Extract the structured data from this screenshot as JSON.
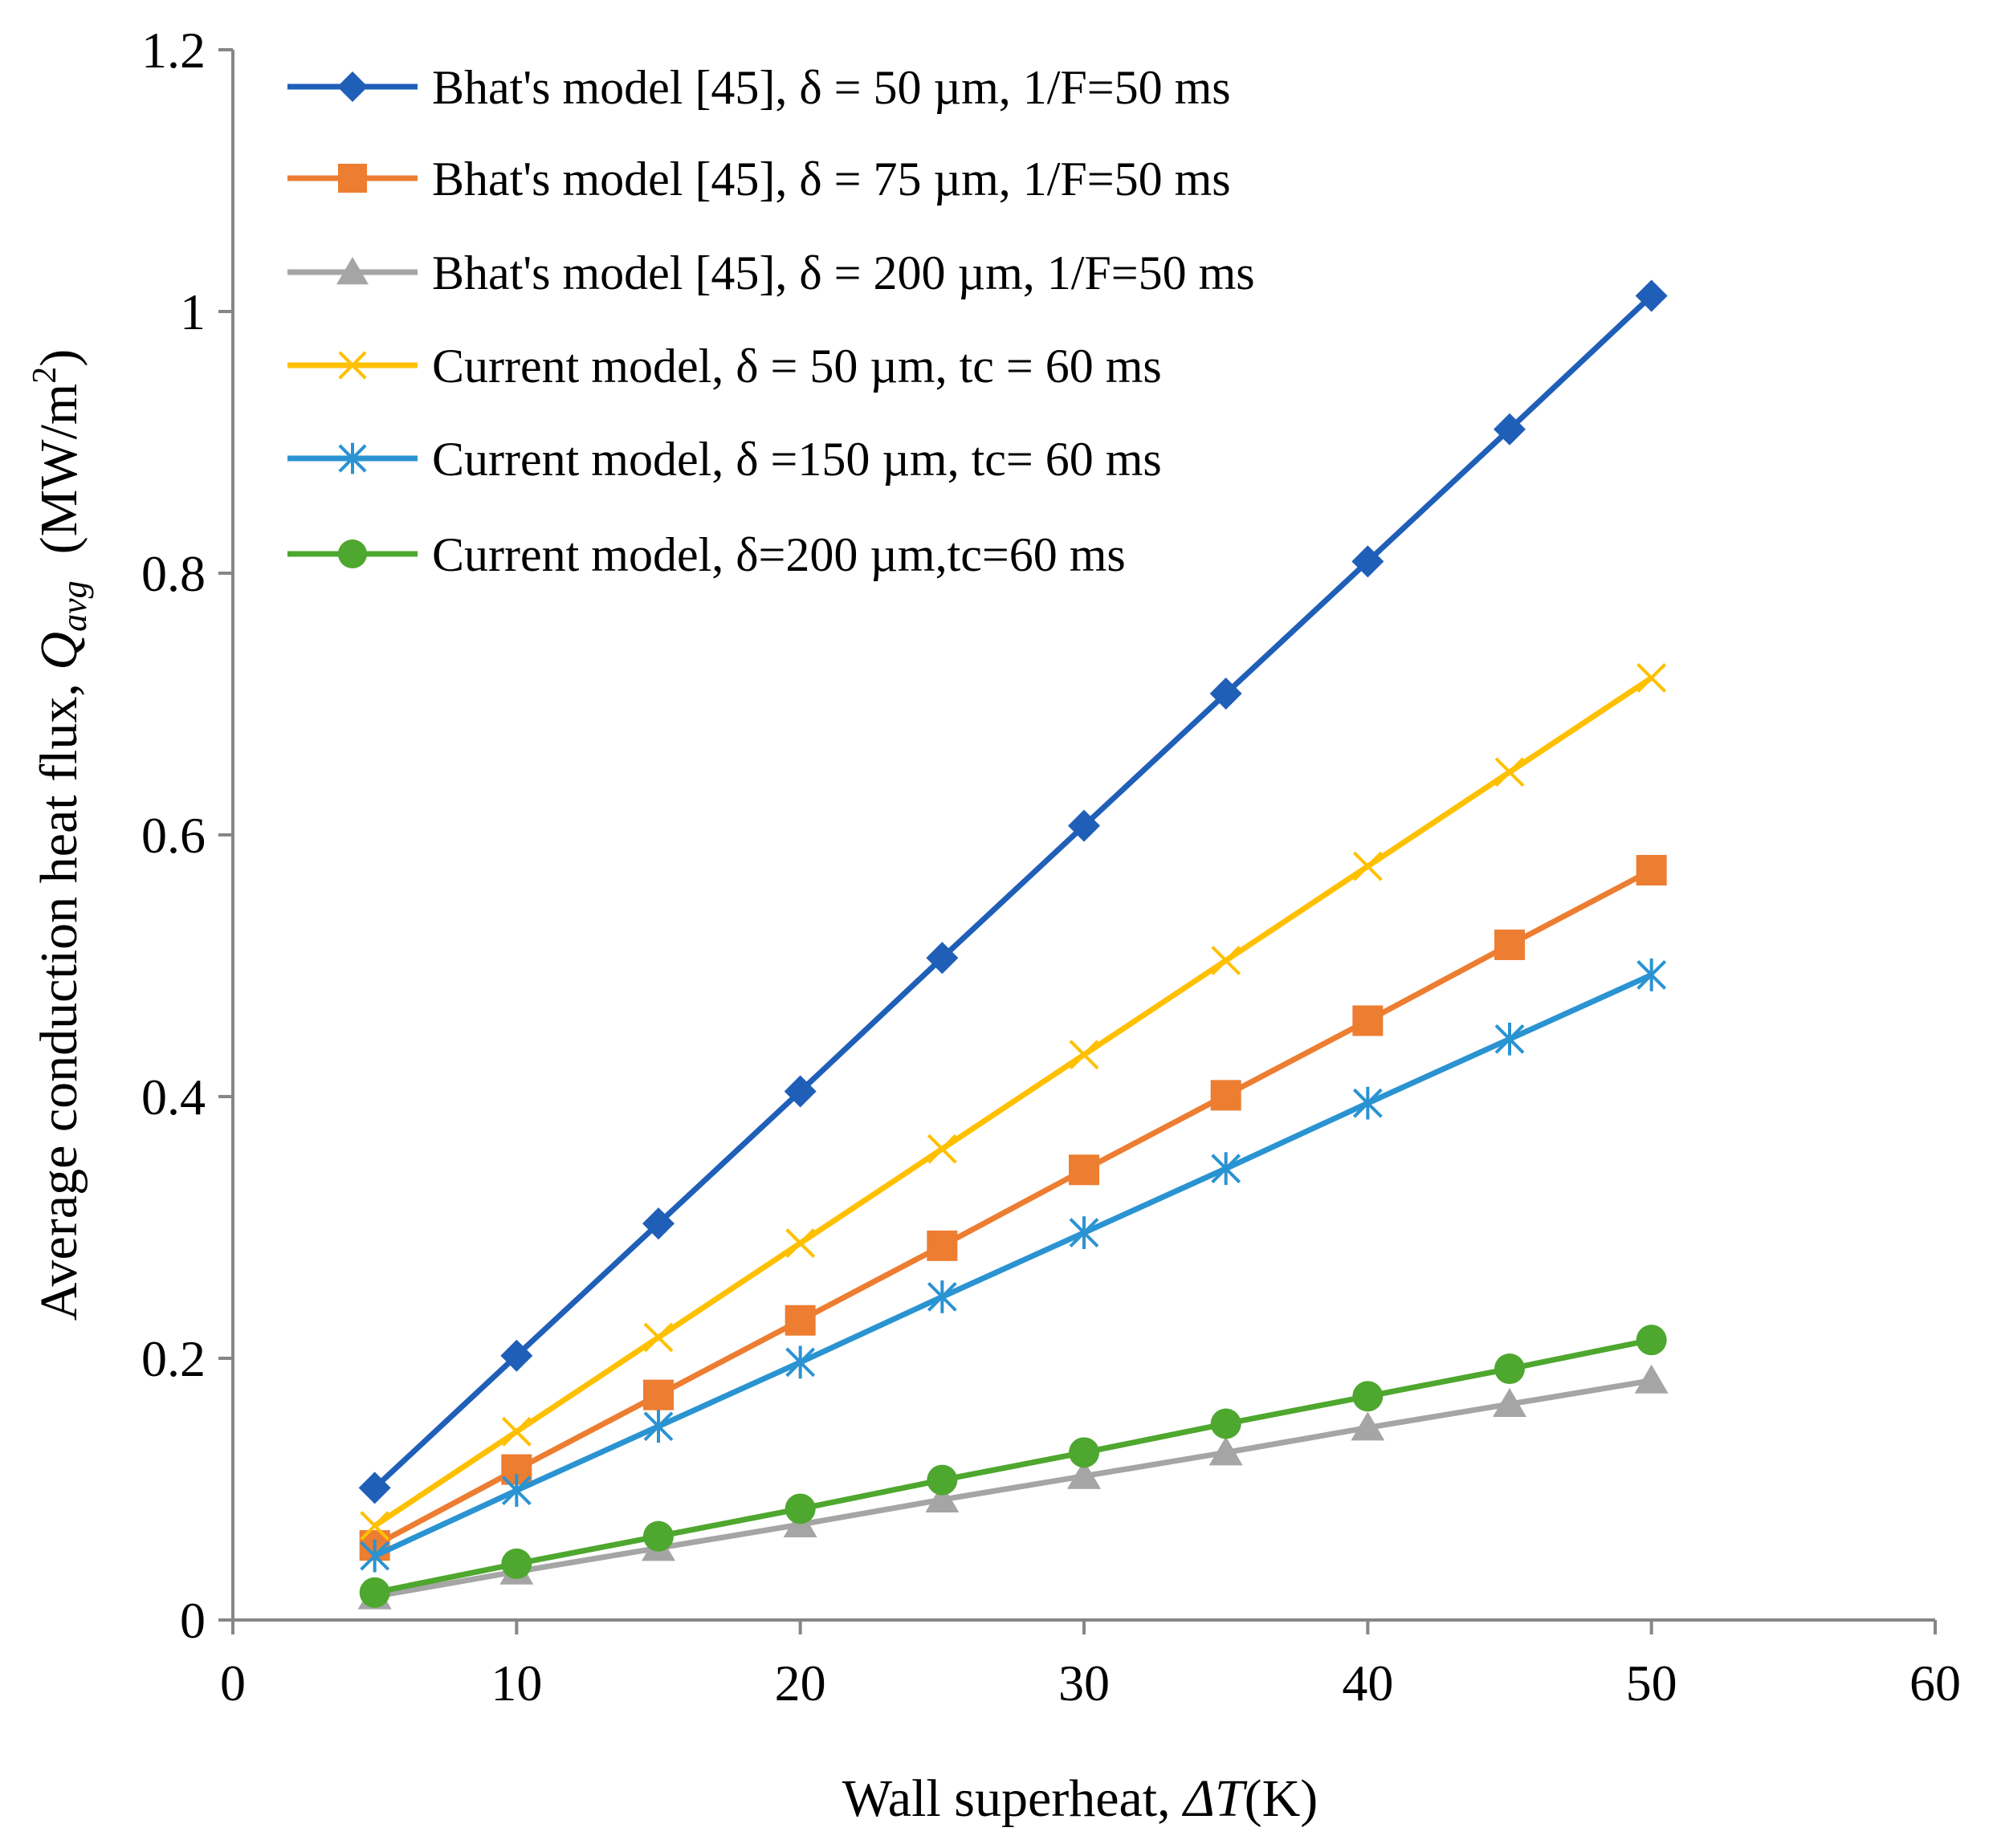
{
  "chart_data": {
    "type": "line",
    "title": "",
    "xlabel": "Wall superheat, ΔT(K)",
    "xlabel_parts": {
      "prefix": "Wall superheat, ",
      "symbol": "ΔT",
      "unit": "(K)"
    },
    "ylabel": "Average conduction heat flux, Qavg (MW/m2)",
    "ylabel_parts": {
      "prefix": "Average conduction heat flux, ",
      "symbol": "Q",
      "subscript": "avg",
      "unit_open": "  (MW/m",
      "unit_sup": "2",
      "unit_close": ")"
    },
    "xlim": [
      0,
      60
    ],
    "ylim": [
      0,
      1.2
    ],
    "xticks": [
      0,
      10,
      20,
      30,
      40,
      50,
      60
    ],
    "xtick_labels": [
      "0",
      "10",
      "20",
      "30",
      "40",
      "50",
      "60"
    ],
    "yticks": [
      0,
      0.2,
      0.4,
      0.6,
      0.8,
      1.0,
      1.2
    ],
    "ytick_labels": [
      "0",
      "0.2",
      "0.4",
      "0.6",
      "0.8",
      "1",
      "1.2"
    ],
    "grid": false,
    "legend_position": "top-left",
    "x": [
      5,
      10,
      15,
      20,
      25,
      30,
      35,
      40,
      45,
      50
    ],
    "series": [
      {
        "name": "Bhat's model [45], δ = 50 µm, 1/F=50 ms",
        "color": "#1F5FB8",
        "marker": "diamond",
        "values": [
          0.101,
          0.202,
          0.303,
          0.404,
          0.506,
          0.607,
          0.708,
          0.809,
          0.91,
          1.012
        ]
      },
      {
        "name": "Bhat's model [45], δ = 75 µm, 1/F=50 ms",
        "color": "#ED7D31",
        "marker": "square",
        "values": [
          0.057,
          0.115,
          0.172,
          0.229,
          0.286,
          0.344,
          0.401,
          0.458,
          0.516,
          0.573
        ]
      },
      {
        "name": "Bhat's model [45], δ = 200 µm, 1/F=50 ms",
        "color": "#A5A5A5",
        "marker": "triangle",
        "values": [
          0.018,
          0.037,
          0.055,
          0.073,
          0.092,
          0.11,
          0.128,
          0.147,
          0.165,
          0.183
        ]
      },
      {
        "name": "Current model, δ = 50 µm, tc = 60 ms",
        "color": "#FFC000",
        "marker": "x",
        "values": [
          0.072,
          0.144,
          0.216,
          0.288,
          0.36,
          0.432,
          0.504,
          0.576,
          0.648,
          0.72
        ]
      },
      {
        "name": "Current model, δ =150 µm, tc= 60 ms",
        "color": "#2A93D2",
        "marker": "star",
        "values": [
          0.049,
          0.099,
          0.148,
          0.197,
          0.247,
          0.296,
          0.345,
          0.395,
          0.444,
          0.493
        ]
      },
      {
        "name": "Current model, δ=200 µm,tc=60 ms",
        "color": "#4EA72E",
        "marker": "circle",
        "values": [
          0.021,
          0.043,
          0.064,
          0.085,
          0.107,
          0.128,
          0.15,
          0.171,
          0.192,
          0.214
        ]
      }
    ]
  }
}
